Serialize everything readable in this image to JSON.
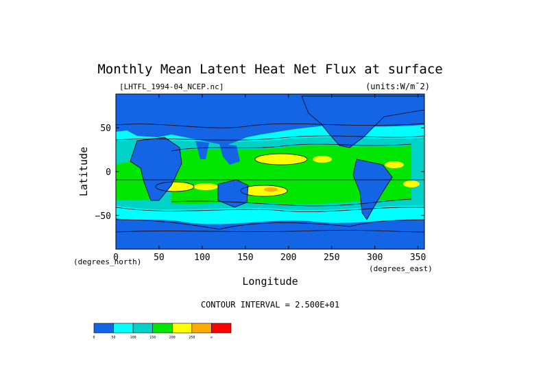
{
  "chart_data": {
    "type": "heatmap",
    "title": "Monthly Mean Latent Heat Net Flux at surface",
    "file_label": "[LHTFL_1994-04_NCEP.nc]",
    "units_label": "(units:W/m¯2)",
    "xlabel": "Longitude",
    "ylabel": "Latitude",
    "x_units": "(degrees_east)",
    "y_units": "(degrees_north)",
    "xlim": [
      0,
      357.5
    ],
    "ylim": [
      -88.5,
      88.5
    ],
    "x_ticks": [
      0,
      50,
      100,
      150,
      200,
      250,
      300,
      350
    ],
    "y_ticks": [
      50,
      0,
      -50
    ],
    "contour_interval_text": "CONTOUR INTERVAL = 2.500E+01",
    "colorbar": {
      "labels": [
        "0",
        "50",
        "100",
        "150",
        "200",
        "250",
        "∞"
      ],
      "colors": [
        "#1464e6",
        "#00ffff",
        "#00d2c8",
        "#00e600",
        "#ffff00",
        "#ffaa00",
        "#ff0000"
      ]
    },
    "fill_colors": {
      "v0": "#1464e6",
      "v50": "#00ffff",
      "v100": "#00d2c8",
      "v150": "#00e600",
      "v200": "#ffff00",
      "v250": "#ffaa00",
      "v300": "#ff0000"
    }
  }
}
